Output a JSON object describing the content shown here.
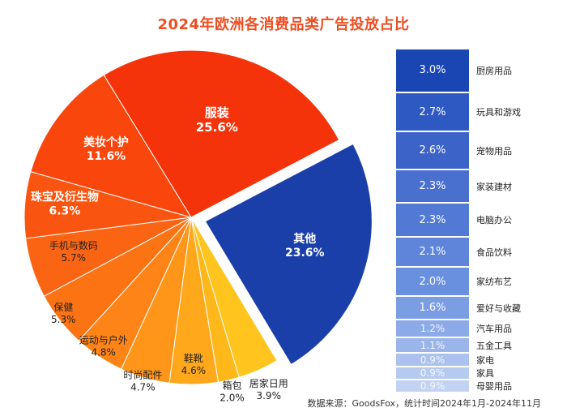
{
  "chart_data": [
    {
      "type": "pie",
      "title": "2024年欧洲各消费品类广告投放占比",
      "slices": [
        {
          "name": "其他",
          "value": 23.6,
          "label": "23.6%",
          "color": "#1a3fa8",
          "exploded": true
        },
        {
          "name": "居家日用",
          "value": 3.9,
          "label": "3.9%",
          "color": "#ffc51e"
        },
        {
          "name": "箱包",
          "value": 2.0,
          "label": "2.0%",
          "color": "#ffb81a"
        },
        {
          "name": "鞋靴",
          "value": 4.6,
          "label": "4.6%",
          "color": "#ffa81c"
        },
        {
          "name": "时尚配件",
          "value": 4.7,
          "label": "4.7%",
          "color": "#ff961a"
        },
        {
          "name": "运动与户外",
          "value": 4.8,
          "label": "4.8%",
          "color": "#ff8417"
        },
        {
          "name": "保健",
          "value": 5.3,
          "label": "5.3%",
          "color": "#fc7314"
        },
        {
          "name": "手机与数码",
          "value": 5.7,
          "label": "5.7%",
          "color": "#fb6412"
        },
        {
          "name": "珠宝及衍生物",
          "value": 6.3,
          "label": "6.3%",
          "color": "#fa5510"
        },
        {
          "name": "美妆个护",
          "value": 11.6,
          "label": "11.6%",
          "color": "#f9460d"
        },
        {
          "name": "服装",
          "value": 25.6,
          "label": "25.6%",
          "color": "#f5330a"
        }
      ]
    },
    {
      "type": "bar",
      "stacked": true,
      "breakdown_of": "其他",
      "categories": [
        "厨房用品",
        "玩具和游戏",
        "宠物用品",
        "家装建材",
        "电脑办公",
        "食品饮料",
        "家纺布艺",
        "爱好与收藏",
        "汽车用品",
        "五金工具",
        "家电",
        "家具",
        "母婴用品"
      ],
      "values": [
        3.0,
        2.7,
        2.6,
        2.3,
        2.3,
        2.1,
        2.0,
        1.6,
        1.2,
        1.1,
        0.9,
        0.9,
        0.9
      ],
      "labels": [
        "3.0%",
        "2.7%",
        "2.6%",
        "2.3%",
        "2.3%",
        "2.1%",
        "2.0%",
        "1.6%",
        "1.2%",
        "1.1%",
        "0.9%",
        "0.9%",
        "0.9%"
      ],
      "colors": [
        "#1a46b4",
        "#2f59c2",
        "#3b63c8",
        "#4a70cf",
        "#527ad5",
        "#5e85da",
        "#6990de",
        "#7a9de4",
        "#8caae8",
        "#9bb5ea",
        "#abc1ee",
        "#b6caf0",
        "#c2d2f3"
      ]
    }
  ],
  "footer": {
    "source": "数据来源：GoodsFox，统计时间2024年1月-2024年11月"
  }
}
